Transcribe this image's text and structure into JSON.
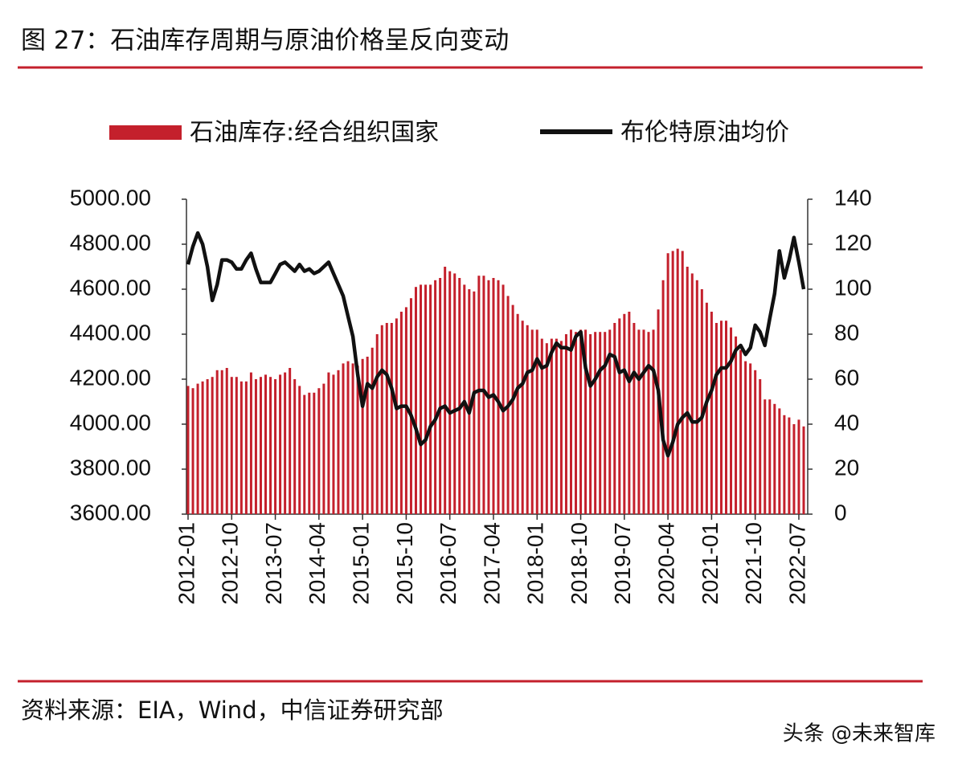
{
  "chart_data": {
    "type": "bar-line",
    "title": "图 27：石油库存周期与原油价格呈反向变动",
    "source": "资料来源：EIA，Wind，中信证券研究部",
    "watermark": "头条 @未来智库",
    "categories": [
      "2012-01",
      null,
      null,
      null,
      null,
      null,
      null,
      null,
      null,
      "2012-10",
      null,
      null,
      null,
      null,
      null,
      null,
      null,
      null,
      "2013-07",
      null,
      null,
      null,
      null,
      null,
      null,
      null,
      null,
      "2014-04",
      null,
      null,
      null,
      null,
      null,
      null,
      null,
      null,
      "2015-01",
      null,
      null,
      null,
      null,
      null,
      null,
      null,
      null,
      "2015-10",
      null,
      null,
      null,
      null,
      null,
      null,
      null,
      null,
      "2016-07",
      null,
      null,
      null,
      null,
      null,
      null,
      null,
      null,
      "2017-04",
      null,
      null,
      null,
      null,
      null,
      null,
      null,
      null,
      "2018-01",
      null,
      null,
      null,
      null,
      null,
      null,
      null,
      null,
      "2018-10",
      null,
      null,
      null,
      null,
      null,
      null,
      null,
      null,
      "2019-07",
      null,
      null,
      null,
      null,
      null,
      null,
      null,
      null,
      "2020-04",
      null,
      null,
      null,
      null,
      null,
      null,
      null,
      null,
      "2021-01",
      null,
      null,
      null,
      null,
      null,
      null,
      null,
      null,
      "2021-10",
      null,
      null,
      null,
      null,
      null,
      null,
      null,
      null,
      "2022-07",
      null
    ],
    "series": [
      {
        "name": "石油库存:经合组织国家",
        "type": "bar",
        "color": "#c4202c",
        "values": [
          4170,
          4160,
          4180,
          4190,
          4200,
          4210,
          4240,
          4240,
          4250,
          4210,
          4210,
          4190,
          4190,
          4230,
          4200,
          4210,
          4220,
          4210,
          4200,
          4220,
          4230,
          4250,
          4200,
          4170,
          4130,
          4140,
          4140,
          4160,
          4180,
          4230,
          4220,
          4240,
          4270,
          4280,
          4270,
          4260,
          4290,
          4300,
          4340,
          4400,
          4440,
          4450,
          4450,
          4470,
          4500,
          4520,
          4560,
          4610,
          4620,
          4620,
          4620,
          4640,
          4650,
          4700,
          4680,
          4670,
          4650,
          4620,
          4600,
          4590,
          4660,
          4660,
          4640,
          4650,
          4640,
          4620,
          4570,
          4530,
          4490,
          4460,
          4440,
          4420,
          4420,
          4380,
          4360,
          4380,
          4380,
          4370,
          4400,
          4420,
          4410,
          4420,
          4420,
          4400,
          4410,
          4410,
          4410,
          4420,
          4450,
          4470,
          4490,
          4500,
          4450,
          4420,
          4420,
          4410,
          4420,
          4510,
          4640,
          4760,
          4770,
          4780,
          4770,
          4700,
          4670,
          4640,
          4600,
          4540,
          4500,
          4450,
          4460,
          4460,
          4430,
          4390,
          4330,
          4280,
          4270,
          4240,
          4200,
          4110,
          4110,
          4090,
          4070,
          4040,
          4030,
          4000,
          4020,
          3990
        ]
      },
      {
        "name": "布伦特原油均价",
        "type": "line",
        "axis": "y2",
        "color": "#111111",
        "values": [
          111,
          119,
          125,
          120,
          110,
          95,
          102,
          113,
          113,
          112,
          109,
          109,
          113,
          116,
          109,
          103,
          103,
          103,
          107,
          111,
          112,
          110,
          108,
          111,
          108,
          109,
          107,
          108,
          110,
          112,
          107,
          102,
          97,
          88,
          79,
          62,
          48,
          58,
          56,
          61,
          64,
          62,
          56,
          47,
          48,
          48,
          44,
          38,
          31,
          33,
          39,
          42,
          47,
          48,
          45,
          46,
          47,
          50,
          45,
          54,
          55,
          55,
          52,
          53,
          50,
          46,
          48,
          51,
          56,
          58,
          63,
          64,
          69,
          65,
          66,
          72,
          76,
          74,
          74,
          73,
          79,
          81,
          65,
          57,
          60,
          64,
          66,
          71,
          70,
          63,
          64,
          59,
          63,
          60,
          63,
          66,
          64,
          55,
          33,
          26,
          32,
          40,
          43,
          45,
          41,
          41,
          43,
          50,
          55,
          62,
          65,
          65,
          68,
          73,
          75,
          71,
          74,
          84,
          81,
          75,
          87,
          98,
          117,
          105,
          113,
          123,
          112,
          100
        ]
      }
    ],
    "ylim": [
      3600,
      5000
    ],
    "yticks": [
      {
        "value": 3600,
        "label": "3600.00"
      },
      {
        "value": 3800,
        "label": "3800.00"
      },
      {
        "value": 4000,
        "label": "4000.00"
      },
      {
        "value": 4200,
        "label": "4200.00"
      },
      {
        "value": 4400,
        "label": "4400.00"
      },
      {
        "value": 4600,
        "label": "4600.00"
      },
      {
        "value": 4800,
        "label": "4800.00"
      },
      {
        "value": 5000,
        "label": "5000.00"
      }
    ],
    "y2lim": [
      0,
      140
    ],
    "y2ticks": [
      0,
      20,
      40,
      60,
      80,
      100,
      120,
      140
    ],
    "legend": "top"
  }
}
